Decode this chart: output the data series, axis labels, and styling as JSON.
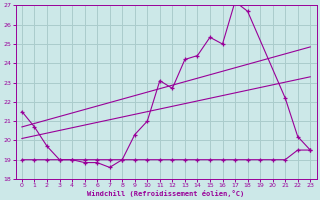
{
  "xlabel": "Windchill (Refroidissement éolien,°C)",
  "xlim": [
    -0.5,
    23.5
  ],
  "ylim": [
    18,
    27
  ],
  "yticks": [
    18,
    19,
    20,
    21,
    22,
    23,
    24,
    25,
    26,
    27
  ],
  "xticks": [
    0,
    1,
    2,
    3,
    4,
    5,
    6,
    7,
    8,
    9,
    10,
    11,
    12,
    13,
    14,
    15,
    16,
    17,
    18,
    19,
    20,
    21,
    22,
    23
  ],
  "background_color": "#cce8e8",
  "grid_color": "#aacccc",
  "line_color": "#990099",
  "line1_x": [
    0,
    1,
    2,
    3,
    4,
    5,
    6,
    7,
    8,
    9,
    10,
    11,
    12,
    13,
    14,
    15,
    16,
    17,
    18,
    21,
    22,
    23
  ],
  "line1_y": [
    21.5,
    20.7,
    19.7,
    19.0,
    19.0,
    18.85,
    18.85,
    18.6,
    19.0,
    20.3,
    21.0,
    23.1,
    22.7,
    24.2,
    24.4,
    25.35,
    25.0,
    27.2,
    26.7,
    22.2,
    20.2,
    19.5
  ],
  "line2_x": [
    0,
    1,
    2,
    3,
    4,
    5,
    6,
    7,
    8,
    9,
    10,
    11,
    12,
    13,
    14,
    15,
    16,
    17,
    18,
    19,
    20,
    21,
    22,
    23
  ],
  "line2_y": [
    19.0,
    19.0,
    19.0,
    19.0,
    19.0,
    19.0,
    19.0,
    19.0,
    19.0,
    19.0,
    19.0,
    19.0,
    19.0,
    19.0,
    19.0,
    19.0,
    19.0,
    19.0,
    19.0,
    19.0,
    19.0,
    19.0,
    19.5,
    19.5
  ],
  "line3_x": [
    0,
    23
  ],
  "line3_y": [
    20.1,
    23.3
  ],
  "line4_x": [
    0,
    23
  ],
  "line4_y": [
    20.7,
    24.85
  ]
}
